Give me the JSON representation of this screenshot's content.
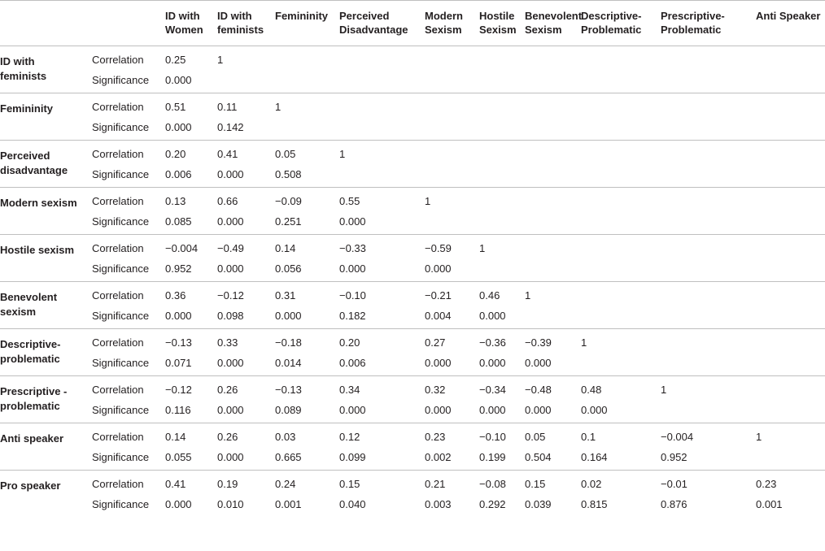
{
  "columns": [
    "ID with Women",
    "ID with feminists",
    "Femininity",
    "Perceived Disadvantage",
    "Modern Sexism",
    "Hostile Sexism",
    "Benevolent Sexism",
    "Descriptive-Problematic",
    "Prescriptive-Problematic",
    "Anti Speaker"
  ],
  "stat_labels": {
    "correlation": "Correlation",
    "significance": "Significance"
  },
  "rows": [
    {
      "label": "ID with feminists",
      "correlation": [
        "0.25",
        "1",
        "",
        "",
        "",
        "",
        "",
        "",
        "",
        ""
      ],
      "significance": [
        "0.000",
        "",
        "",
        "",
        "",
        "",
        "",
        "",
        "",
        ""
      ]
    },
    {
      "label": "Femininity",
      "correlation": [
        "0.51",
        "0.11",
        "1",
        "",
        "",
        "",
        "",
        "",
        "",
        ""
      ],
      "significance": [
        "0.000",
        "0.142",
        "",
        "",
        "",
        "",
        "",
        "",
        "",
        ""
      ]
    },
    {
      "label": "Perceived disadvantage",
      "correlation": [
        "0.20",
        "0.41",
        "0.05",
        "1",
        "",
        "",
        "",
        "",
        "",
        ""
      ],
      "significance": [
        "0.006",
        "0.000",
        "0.508",
        "",
        "",
        "",
        "",
        "",
        "",
        ""
      ]
    },
    {
      "label": "Modern sexism",
      "correlation": [
        "0.13",
        "0.66",
        "−0.09",
        "0.55",
        "1",
        "",
        "",
        "",
        "",
        ""
      ],
      "significance": [
        "0.085",
        "0.000",
        "0.251",
        "0.000",
        "",
        "",
        "",
        "",
        "",
        ""
      ]
    },
    {
      "label": "Hostile sexism",
      "correlation": [
        "−0.004",
        "−0.49",
        "0.14",
        "−0.33",
        "−0.59",
        "1",
        "",
        "",
        "",
        ""
      ],
      "significance": [
        "0.952",
        "0.000",
        "0.056",
        "0.000",
        "0.000",
        "",
        "",
        "",
        "",
        ""
      ]
    },
    {
      "label": "Benevolent sexism",
      "correlation": [
        "0.36",
        "−0.12",
        "0.31",
        "−0.10",
        "−0.21",
        "0.46",
        "1",
        "",
        "",
        ""
      ],
      "significance": [
        "0.000",
        "0.098",
        "0.000",
        "0.182",
        "0.004",
        "0.000",
        "",
        "",
        "",
        ""
      ]
    },
    {
      "label": "Descriptive-problematic",
      "correlation": [
        "−0.13",
        "0.33",
        "−0.18",
        "0.20",
        "0.27",
        "−0.36",
        "−0.39",
        "1",
        "",
        ""
      ],
      "significance": [
        "0.071",
        "0.000",
        "0.014",
        "0.006",
        "0.000",
        "0.000",
        "0.000",
        "",
        "",
        ""
      ]
    },
    {
      "label": "Prescriptive -problematic",
      "correlation": [
        "−0.12",
        "0.26",
        "−0.13",
        "0.34",
        "0.32",
        "−0.34",
        "−0.48",
        "0.48",
        "1",
        ""
      ],
      "significance": [
        "0.116",
        "0.000",
        "0.089",
        "0.000",
        "0.000",
        "0.000",
        "0.000",
        "0.000",
        "",
        ""
      ]
    },
    {
      "label": "Anti speaker",
      "correlation": [
        "0.14",
        "0.26",
        "0.03",
        "0.12",
        "0.23",
        "−0.10",
        "0.05",
        "0.1",
        "−0.004",
        "1"
      ],
      "significance": [
        "0.055",
        "0.000",
        "0.665",
        "0.099",
        "0.002",
        "0.199",
        "0.504",
        "0.164",
        "0.952",
        ""
      ]
    },
    {
      "label": "Pro speaker",
      "correlation": [
        "0.41",
        "0.19",
        "0.24",
        "0.15",
        "0.21",
        "−0.08",
        "0.15",
        "0.02",
        "−0.01",
        "0.23"
      ],
      "significance": [
        "0.000",
        "0.010",
        "0.001",
        "0.040",
        "0.003",
        "0.292",
        "0.039",
        "0.815",
        "0.876",
        "0.001"
      ]
    }
  ]
}
